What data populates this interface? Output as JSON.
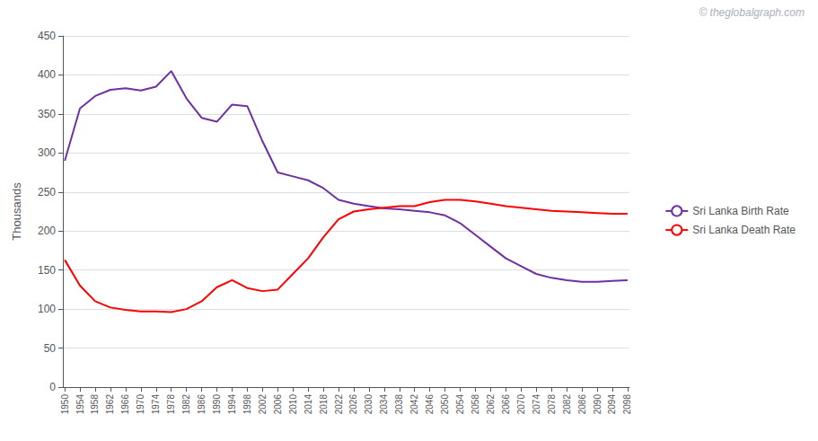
{
  "chart_data": {
    "type": "line",
    "x": [
      1950,
      1954,
      1958,
      1962,
      1966,
      1970,
      1974,
      1978,
      1982,
      1986,
      1990,
      1994,
      1998,
      2002,
      2006,
      2010,
      2014,
      2018,
      2022,
      2026,
      2030,
      2034,
      2038,
      2042,
      2046,
      2050,
      2054,
      2058,
      2062,
      2066,
      2070,
      2074,
      2078,
      2082,
      2086,
      2090,
      2094,
      2098
    ],
    "series": [
      {
        "name": "Sri Lanka Birth Rate",
        "color": "#7030a0",
        "values": [
          290,
          357,
          373,
          381,
          383,
          380,
          385,
          405,
          370,
          345,
          340,
          362,
          360,
          315,
          275,
          270,
          265,
          255,
          240,
          235,
          232,
          229,
          228,
          226,
          224,
          220,
          210,
          195,
          180,
          165,
          155,
          145,
          140,
          137,
          135,
          135,
          136,
          137
        ]
      },
      {
        "name": "Sri Lanka Death Rate",
        "color": "#ff0000",
        "values": [
          163,
          130,
          110,
          102,
          99,
          97,
          97,
          96,
          100,
          110,
          128,
          137,
          127,
          123,
          125,
          145,
          165,
          192,
          215,
          225,
          228,
          230,
          232,
          232,
          237,
          240,
          240,
          238,
          235,
          232,
          230,
          228,
          226,
          225,
          224,
          223,
          222,
          222
        ]
      }
    ],
    "ylabel": "Thousands",
    "ylim": [
      0,
      450
    ],
    "yticks": [
      0,
      50,
      100,
      150,
      200,
      250,
      300,
      350,
      400,
      450
    ],
    "xlim": [
      1949.5,
      2098.5
    ],
    "xticks": [
      1950,
      1954,
      1958,
      1962,
      1966,
      1970,
      1974,
      1978,
      1982,
      1986,
      1990,
      1994,
      1998,
      2002,
      2006,
      2010,
      2014,
      2018,
      2022,
      2026,
      2030,
      2034,
      2038,
      2042,
      2046,
      2050,
      2054,
      2058,
      2062,
      2066,
      2070,
      2074,
      2078,
      2082,
      2086,
      2090,
      2094,
      2098
    ],
    "grid": true,
    "legend": "right",
    "annotations": [
      "© theglobalgraph.com"
    ]
  }
}
